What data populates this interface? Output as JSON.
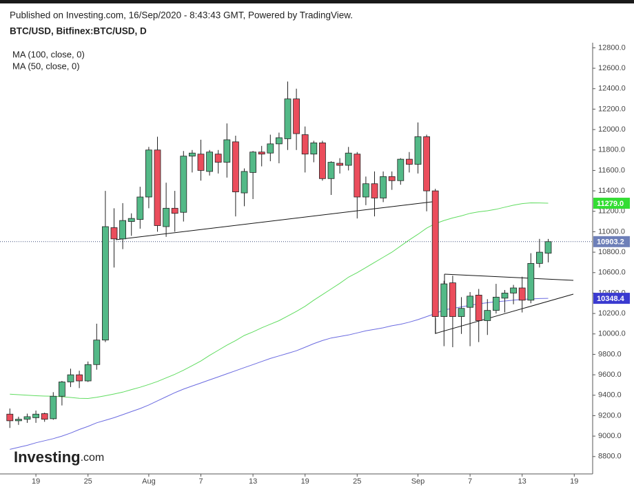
{
  "chart_data": {
    "type": "candlestick",
    "published": "Published on Investing.com, 16/Sep/2020 - 8:43:43 GMT, Powered by TradingView.",
    "title": "BTC/USD, Bitfinex:BTC/USD, D",
    "logo": {
      "main": "Investing",
      "suffix": ".com"
    },
    "categories": [
      null,
      null,
      null,
      "19",
      null,
      null,
      null,
      null,
      null,
      "25",
      null,
      null,
      null,
      null,
      null,
      null,
      "Aug",
      null,
      null,
      null,
      null,
      null,
      "7",
      null,
      null,
      null,
      null,
      null,
      "13",
      null,
      null,
      null,
      null,
      null,
      "19",
      null,
      null,
      null,
      null,
      null,
      "25",
      null,
      null,
      null,
      null,
      null,
      null,
      "Sep",
      null,
      null,
      null,
      null,
      null,
      "7",
      null,
      null,
      null,
      null,
      null,
      "13",
      null,
      null,
      null,
      null,
      null,
      "19",
      null,
      null
    ],
    "open": [
      9215,
      9150,
      9165,
      9180,
      9220,
      9170,
      9390,
      9530,
      9600,
      9540,
      9700,
      9940,
      11040,
      10930,
      11100,
      11120,
      11340,
      11800,
      11050,
      11230,
      11190,
      11740,
      11760,
      11590,
      11760,
      11680,
      11880,
      11380,
      11580,
      11780,
      11770,
      11860,
      11910,
      12300,
      11950,
      11760,
      11870,
      11520,
      11670,
      11650,
      11760,
      11340,
      11470,
      11330,
      11540,
      11500,
      11710,
      11660,
      11930,
      11400,
      10170,
      10500,
      10170,
      10260,
      10380,
      10130,
      10230,
      10350,
      10400,
      10450,
      10330,
      10690,
      10790,
      null,
      null,
      null,
      null,
      null
    ],
    "high": [
      9270,
      9190,
      9220,
      9250,
      9230,
      9430,
      9540,
      9660,
      9640,
      9730,
      10100,
      11400,
      11230,
      11280,
      11180,
      11440,
      11830,
      11930,
      11480,
      11400,
      11790,
      11800,
      11900,
      11800,
      11800,
      12060,
      11940,
      11620,
      11790,
      11840,
      11950,
      11970,
      12470,
      12400,
      12030,
      11890,
      11890,
      11690,
      11720,
      11830,
      11780,
      11540,
      11590,
      11590,
      11590,
      11720,
      11780,
      12070,
      11950,
      11420,
      10520,
      10570,
      10360,
      10410,
      10440,
      10340,
      10490,
      10430,
      10480,
      10560,
      10790,
      10930,
      10930,
      null,
      null,
      null,
      null,
      null
    ],
    "low": [
      9080,
      9110,
      9130,
      9130,
      9140,
      9160,
      9300,
      9480,
      9470,
      9530,
      9650,
      9920,
      10650,
      10830,
      10960,
      11030,
      11230,
      11000,
      10950,
      11000,
      11100,
      11580,
      11500,
      11550,
      11570,
      11530,
      11150,
      11250,
      11320,
      11640,
      11690,
      11670,
      11800,
      11800,
      11580,
      11680,
      11500,
      11360,
      11570,
      11600,
      11130,
      11260,
      11150,
      11290,
      11410,
      11460,
      11580,
      11570,
      11200,
      10000,
      9880,
      9870,
      10000,
      9880,
      9920,
      9990,
      10200,
      10210,
      10290,
      10210,
      10300,
      10650,
      10700,
      null,
      null,
      null,
      null,
      null
    ],
    "close": [
      9150,
      9165,
      9190,
      9215,
      9165,
      9390,
      9530,
      9600,
      9540,
      9700,
      9940,
      11050,
      10930,
      11110,
      11130,
      11340,
      11800,
      11060,
      11230,
      11180,
      11740,
      11770,
      11600,
      11780,
      11680,
      11900,
      11390,
      11590,
      11780,
      11760,
      11860,
      11920,
      12300,
      11960,
      11760,
      11870,
      11520,
      11680,
      11650,
      11770,
      11340,
      11470,
      11330,
      11540,
      11500,
      11710,
      11660,
      11930,
      11400,
      10170,
      10490,
      10170,
      10250,
      10370,
      10130,
      10230,
      10360,
      10400,
      10450,
      10330,
      10690,
      10800,
      10903.2,
      null,
      null,
      null,
      null,
      null
    ],
    "up_color": "#53b987",
    "down_color": "#eb4d5c",
    "series": [
      {
        "name": "MA (100, close, 0)",
        "color": "#6a6ae0",
        "values": [
          8870,
          8890,
          8910,
          8935,
          8955,
          8975,
          9000,
          9030,
          9065,
          9095,
          9130,
          9155,
          9180,
          9210,
          9240,
          9270,
          9305,
          9345,
          9385,
          9425,
          9460,
          9490,
          9520,
          9550,
          9580,
          9610,
          9640,
          9670,
          9700,
          9730,
          9760,
          9785,
          9810,
          9835,
          9870,
          9905,
          9935,
          9960,
          9975,
          9990,
          10010,
          10030,
          10045,
          10060,
          10080,
          10095,
          10115,
          10140,
          10170,
          10200,
          10235,
          10250,
          10265,
          10280,
          10295,
          10305,
          10315,
          10322,
          10330,
          10338,
          10342,
          10346,
          10348.4,
          null,
          null,
          null,
          null,
          null
        ]
      },
      {
        "name": "MA (50, close, 0)",
        "color": "#5fdc5f",
        "values": [
          9410,
          9405,
          9400,
          9395,
          9392,
          9390,
          9385,
          9378,
          9370,
          9368,
          9380,
          9395,
          9412,
          9430,
          9455,
          9478,
          9505,
          9535,
          9570,
          9605,
          9645,
          9690,
          9735,
          9790,
          9840,
          9890,
          9935,
          9985,
          10020,
          10060,
          10095,
          10130,
          10175,
          10220,
          10270,
          10330,
          10385,
          10440,
          10495,
          10555,
          10600,
          10650,
          10700,
          10750,
          10800,
          10860,
          10920,
          10975,
          11035,
          11080,
          11110,
          11135,
          11155,
          11180,
          11195,
          11205,
          11220,
          11240,
          11260,
          11275,
          11283,
          11282,
          11279,
          null,
          null,
          null,
          null,
          null
        ]
      }
    ],
    "price_markers": [
      {
        "value": 11279,
        "label": "11279.0",
        "color": "#33dd33"
      },
      {
        "value": 10903.2,
        "label": "10903.2",
        "color": "#6d7fb8"
      },
      {
        "value": 10348.4,
        "label": "10348.4",
        "color": "#3b3bd0"
      }
    ],
    "ylim": [
      8630,
      12850
    ],
    "yticks": [
      {
        "value": 8800,
        "label": "8800.0"
      },
      {
        "value": 9000,
        "label": "9000.0"
      },
      {
        "value": 9200,
        "label": "9200.0"
      },
      {
        "value": 9400,
        "label": "9400.0"
      },
      {
        "value": 9600,
        "label": "9600.0"
      },
      {
        "value": 9800,
        "label": "9800.0"
      },
      {
        "value": 10000,
        "label": "10000.0"
      },
      {
        "value": 10200,
        "label": "10200.0"
      },
      {
        "value": 10400,
        "label": "10400.0"
      },
      {
        "value": 10600,
        "label": "10600.0"
      },
      {
        "value": 10800,
        "label": "10800.0"
      },
      {
        "value": 11000,
        "label": "11000.0"
      },
      {
        "value": 11200,
        "label": "11200.0"
      },
      {
        "value": 11400,
        "label": "11400.0"
      },
      {
        "value": 11600,
        "label": "11600.0"
      },
      {
        "value": 11800,
        "label": "11800.0"
      },
      {
        "value": 12000,
        "label": "12000.0"
      },
      {
        "value": 12200,
        "label": "12200.0"
      },
      {
        "value": 12400,
        "label": "12400.0"
      },
      {
        "value": 12600,
        "label": "12600.0"
      },
      {
        "value": 12800,
        "label": "12800.0"
      }
    ]
  }
}
